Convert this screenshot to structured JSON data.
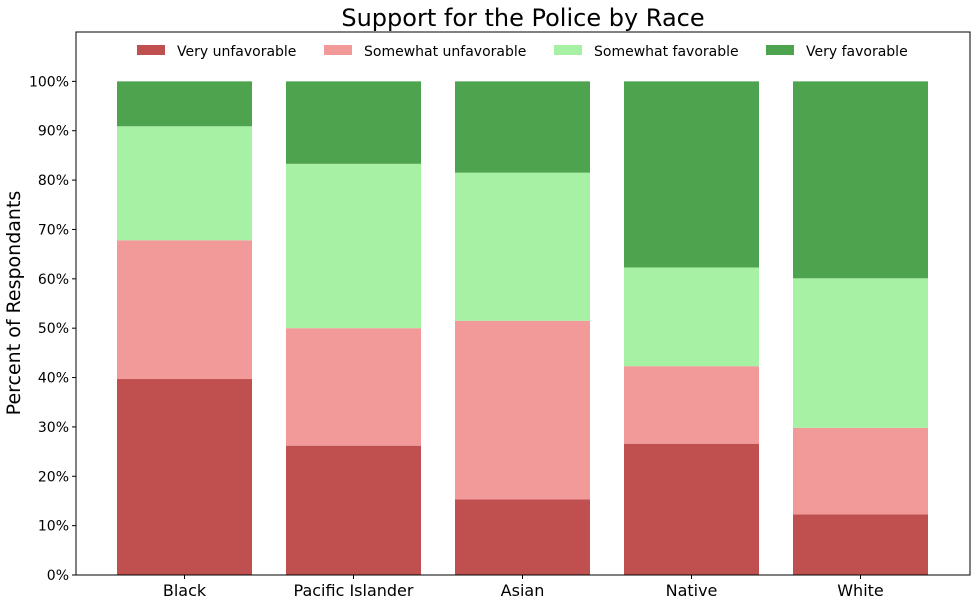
{
  "chart_data": {
    "type": "bar",
    "stacked": true,
    "title": "Support for the Police by Race",
    "xlabel": "",
    "ylabel": "Percent of Respondants",
    "ylim": [
      0,
      110
    ],
    "yticks": [
      "0%",
      "10%",
      "20%",
      "30%",
      "40%",
      "50%",
      "60%",
      "70%",
      "80%",
      "90%",
      "100%"
    ],
    "grid": false,
    "legend_position": "top",
    "categories": [
      "Black",
      "Pacific Islander",
      "Asian",
      "Native",
      "White"
    ],
    "series": [
      {
        "name": "Very unfavorable",
        "color": "#c04f4f",
        "values": [
          39.7,
          26.2,
          15.3,
          26.6,
          12.3
        ]
      },
      {
        "name": "Somewhat unfavorable",
        "color": "#f29a99",
        "values": [
          28.1,
          23.8,
          36.2,
          15.7,
          17.5
        ]
      },
      {
        "name": "Somewhat favorable",
        "color": "#a7f1a5",
        "values": [
          23.1,
          33.3,
          30.0,
          20.0,
          30.3
        ]
      },
      {
        "name": "Very favorable",
        "color": "#4ea34e",
        "values": [
          9.1,
          16.7,
          18.5,
          37.7,
          39.9
        ]
      }
    ]
  }
}
